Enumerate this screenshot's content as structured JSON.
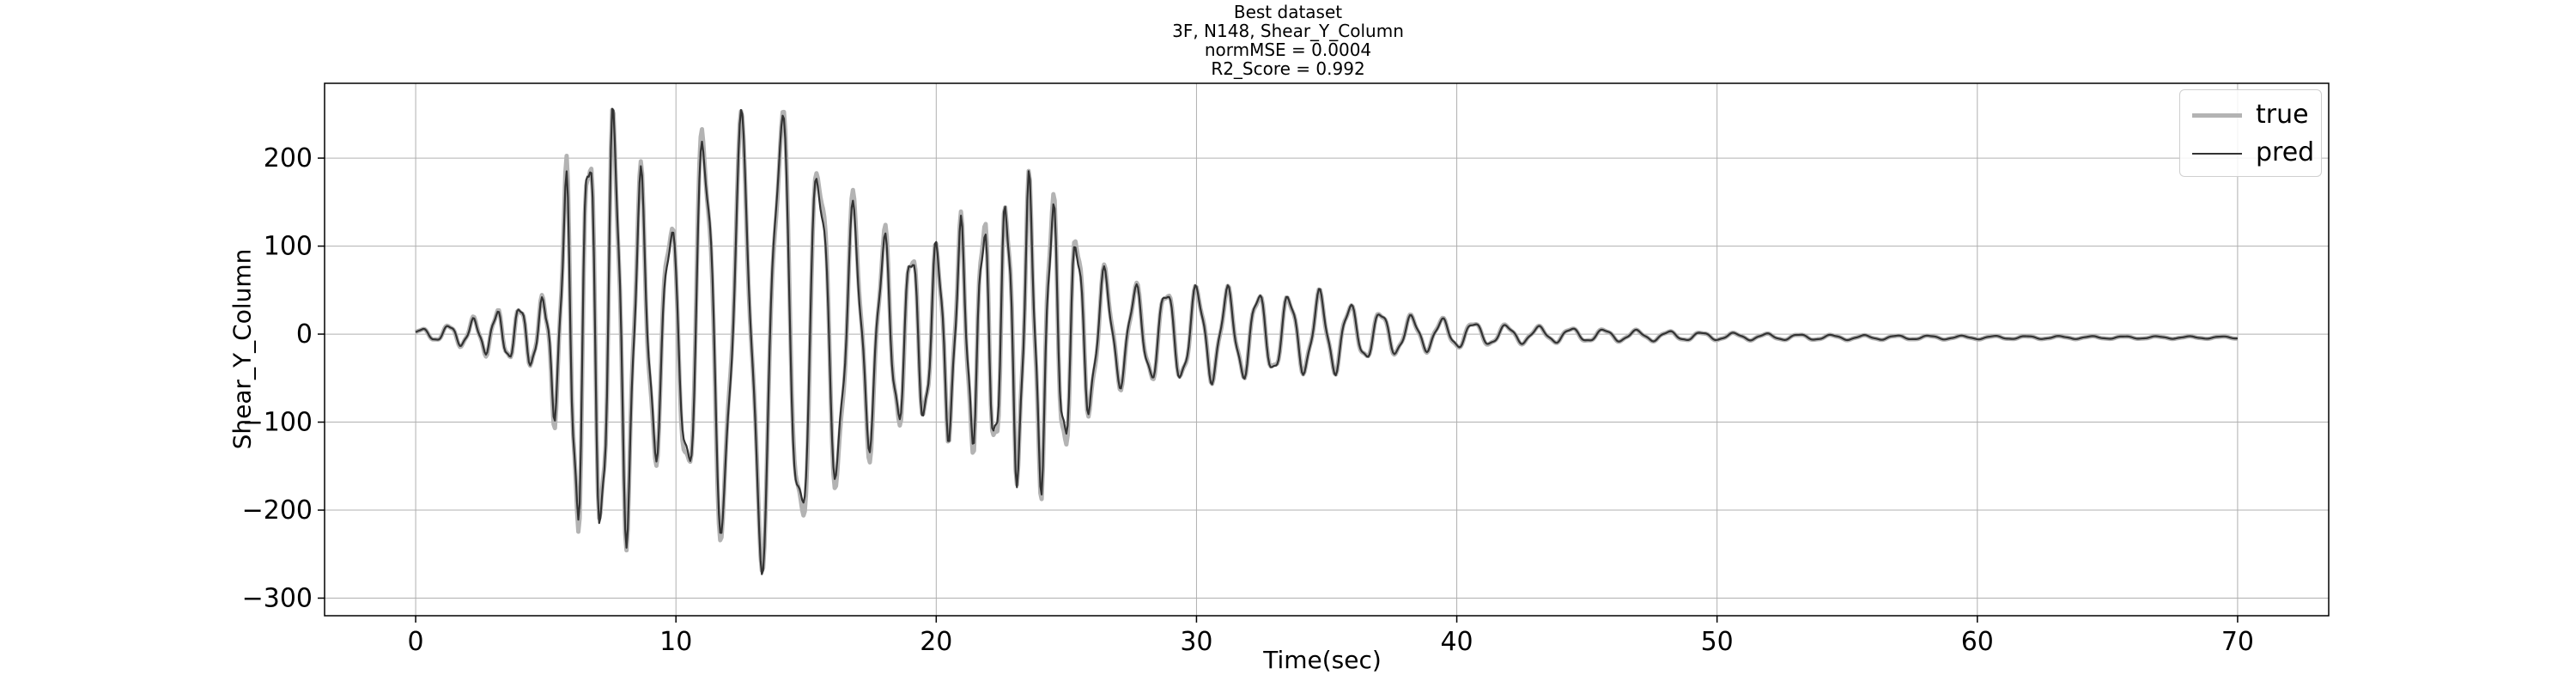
{
  "chart_data": {
    "type": "line",
    "title_lines": [
      "Best dataset",
      "3F, N148, Shear_Y_Column",
      "normMSE = 0.0004",
      "R2_Score = 0.992"
    ],
    "xlabel": "Time(sec)",
    "ylabel": "Shear_Y_Column",
    "xlim": [
      -3.5,
      73.5
    ],
    "ylim": [
      -320,
      285
    ],
    "xticks": [
      0,
      10,
      20,
      30,
      40,
      50,
      60,
      70
    ],
    "yticks": [
      -300,
      -200,
      -100,
      0,
      100,
      200
    ],
    "ytick_labels": [
      "−300",
      "−200",
      "−100",
      "0",
      "100",
      "200"
    ],
    "grid": true,
    "legend_position": "top-right",
    "x_start": 0,
    "x_end": 70,
    "sample_step": 0.05,
    "envelope_keypoints": [
      [
        0,
        5
      ],
      [
        1,
        8
      ],
      [
        2,
        15
      ],
      [
        3,
        25
      ],
      [
        4,
        30
      ],
      [
        5,
        40
      ],
      [
        5.5,
        120
      ],
      [
        6,
        220
      ],
      [
        7,
        215
      ],
      [
        7.7,
        240
      ],
      [
        8.5,
        180
      ],
      [
        9,
        140
      ],
      [
        10,
        120
      ],
      [
        11,
        230
      ],
      [
        12,
        200
      ],
      [
        13,
        230
      ],
      [
        14,
        240
      ],
      [
        15,
        220
      ],
      [
        16,
        170
      ],
      [
        17,
        135
      ],
      [
        18,
        110
      ],
      [
        19,
        95
      ],
      [
        20,
        95
      ],
      [
        21,
        120
      ],
      [
        22,
        130
      ],
      [
        23,
        150
      ],
      [
        24,
        165
      ],
      [
        25,
        135
      ],
      [
        26,
        80
      ],
      [
        27,
        55
      ],
      [
        28,
        50
      ],
      [
        30,
        50
      ],
      [
        32,
        45
      ],
      [
        34,
        40
      ],
      [
        35,
        45
      ],
      [
        36,
        30
      ],
      [
        38,
        20
      ],
      [
        40,
        15
      ],
      [
        42,
        10
      ],
      [
        45,
        7
      ],
      [
        50,
        4
      ],
      [
        55,
        2.5
      ],
      [
        60,
        1.8
      ],
      [
        65,
        1.4
      ],
      [
        70,
        1.2
      ]
    ],
    "series": [
      {
        "name": "true",
        "color": "#b3b3b3",
        "line_width": 5
      },
      {
        "name": "pred",
        "color": "#333333",
        "line_width": 2.2
      }
    ]
  }
}
